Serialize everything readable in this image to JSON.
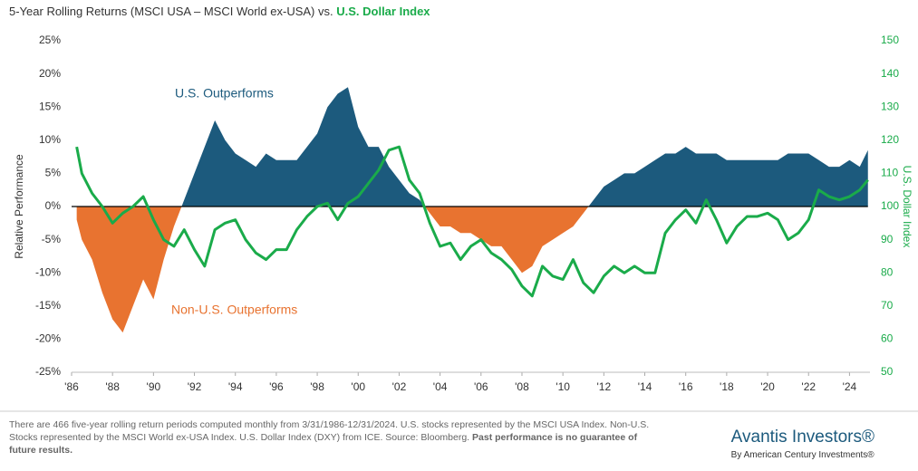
{
  "chart_data": {
    "type": "area_line",
    "title": "5-Year Rolling Returns (MSCI USA – MSCI World ex-USA) vs.",
    "title_highlight": "U.S. Dollar Index",
    "ylabel": "Relative Performance",
    "y2label": "U.S. Dollar Index",
    "annotations": [
      "U.S. Outperforms",
      "Non-U.S. Outperforms"
    ],
    "x": [
      1986.25,
      1986.5,
      1987,
      1987.5,
      1988,
      1988.5,
      1989,
      1989.5,
      1990,
      1990.5,
      1991,
      1991.5,
      1992,
      1992.5,
      1993,
      1993.5,
      1994,
      1994.5,
      1995,
      1995.5,
      1996,
      1996.5,
      1997,
      1997.5,
      1998,
      1998.5,
      1999,
      1999.5,
      2000,
      2000.5,
      2001,
      2001.5,
      2002,
      2002.5,
      2003,
      2003.5,
      2004,
      2004.5,
      2005,
      2005.5,
      2006,
      2006.5,
      2007,
      2007.5,
      2008,
      2008.5,
      2009,
      2009.5,
      2010,
      2010.5,
      2011,
      2011.5,
      2012,
      2012.5,
      2013,
      2013.5,
      2014,
      2014.5,
      2015,
      2015.5,
      2016,
      2016.5,
      2017,
      2017.5,
      2018,
      2018.5,
      2019,
      2019.5,
      2020,
      2020.5,
      2021,
      2021.5,
      2022,
      2022.5,
      2023,
      2023.5,
      2024,
      2024.5,
      2024.9
    ],
    "series": [
      {
        "color": "#1c5a7d",
        "negative_color": "#e87330",
        "values": [
          -2,
          -5,
          -8,
          -13,
          -17,
          -19,
          -15,
          -11,
          -14,
          -8,
          -3,
          1,
          5,
          9,
          13,
          10,
          8,
          7,
          6,
          8,
          7,
          7,
          7,
          9,
          11,
          15,
          17,
          18,
          12,
          9,
          9,
          6,
          4,
          2,
          1,
          -1,
          -3,
          -3,
          -4,
          -4,
          -5,
          -6,
          -6,
          -8,
          -10,
          -9,
          -6,
          -5,
          -4,
          -3,
          -1,
          1,
          3,
          4,
          5,
          5,
          6,
          7,
          8,
          8,
          9,
          8,
          8,
          8,
          7,
          7,
          7,
          7,
          7,
          7,
          8,
          8,
          8,
          7,
          6,
          6,
          7,
          6,
          8.5
        ]
      },
      {
        "color": "#1aab4a",
        "axis": "y2",
        "values": [
          118,
          110,
          104,
          100,
          95,
          98,
          100,
          103,
          96,
          90,
          88,
          93,
          87,
          82,
          93,
          95,
          96,
          90,
          86,
          84,
          87,
          87,
          93,
          97,
          100,
          101,
          96,
          101,
          103,
          107,
          111,
          117,
          118,
          108,
          104,
          95,
          88,
          89,
          84,
          88,
          90,
          86,
          84,
          81,
          76,
          73,
          82,
          79,
          78,
          84,
          77,
          74,
          79,
          82,
          80,
          82,
          80,
          80,
          92,
          96,
          99,
          95,
          102,
          96,
          89,
          94,
          97,
          97,
          98,
          96,
          90,
          92,
          96,
          105,
          103,
          102,
          103,
          105,
          108
        ]
      }
    ],
    "xlim": [
      1986,
      2025
    ],
    "xticks": [
      {
        "value": 1986,
        "label": "'86"
      },
      {
        "value": 1988,
        "label": "'88"
      },
      {
        "value": 1990,
        "label": "'90"
      },
      {
        "value": 1992,
        "label": "'92"
      },
      {
        "value": 1994,
        "label": "'94"
      },
      {
        "value": 1996,
        "label": "'96"
      },
      {
        "value": 1998,
        "label": "'98"
      },
      {
        "value": 2000,
        "label": "'00"
      },
      {
        "value": 2002,
        "label": "'02"
      },
      {
        "value": 2004,
        "label": "'04"
      },
      {
        "value": 2006,
        "label": "'06"
      },
      {
        "value": 2008,
        "label": "'08"
      },
      {
        "value": 2010,
        "label": "'10"
      },
      {
        "value": 2012,
        "label": "'12"
      },
      {
        "value": 2014,
        "label": "'14"
      },
      {
        "value": 2016,
        "label": "'16"
      },
      {
        "value": 2018,
        "label": "'18"
      },
      {
        "value": 2020,
        "label": "'20"
      },
      {
        "value": 2022,
        "label": "'22"
      },
      {
        "value": 2024,
        "label": "'24"
      }
    ],
    "ylim": [
      -25,
      25
    ],
    "yticks": [
      {
        "value": 25,
        "label": "25%"
      },
      {
        "value": 20,
        "label": "20%"
      },
      {
        "value": 15,
        "label": "15%"
      },
      {
        "value": 10,
        "label": "10%"
      },
      {
        "value": 5,
        "label": "5%"
      },
      {
        "value": 0,
        "label": "0%"
      },
      {
        "value": -5,
        "label": "-5%"
      },
      {
        "value": -10,
        "label": "-10%"
      },
      {
        "value": -15,
        "label": "-15%"
      },
      {
        "value": -20,
        "label": "-20%"
      },
      {
        "value": -25,
        "label": "-25%"
      }
    ],
    "y2lim": [
      50,
      150
    ],
    "y2ticks": [
      150,
      140,
      130,
      120,
      110,
      100,
      90,
      80,
      70,
      60,
      50
    ]
  },
  "footer": {
    "note": "There are 466 five-year rolling return periods computed monthly from 3/31/1986-12/31/2024. U.S. stocks represented by the MSCI USA Index. Non-U.S. Stocks represented by the MSCI World ex-USA Index. U.S. Dollar Index (DXY) from ICE. Source: Bloomberg.",
    "note_bold": "Past performance is no guarantee of future results.",
    "brand": "Avantis Investors®",
    "brand_sub": "By American Century Investments®"
  }
}
